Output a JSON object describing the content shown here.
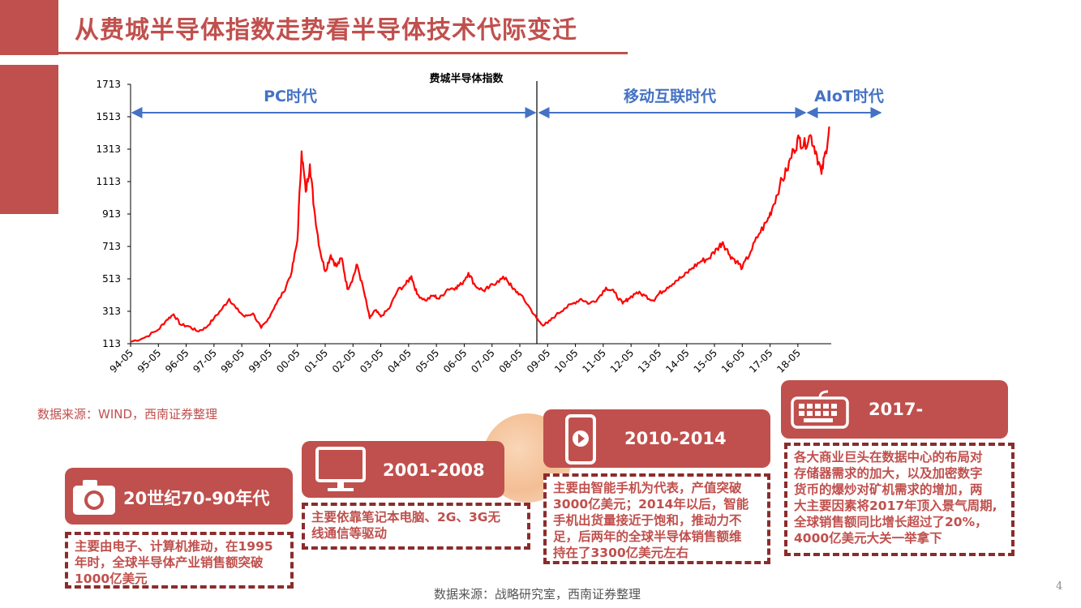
{
  "page": {
    "title": "从费城半导体指数走势看半导体技术代际变迁",
    "source_chart": "数据来源：WIND，西南证券整理",
    "source_footer": "数据来源：战略研究室，西南证券整理",
    "page_number": "4"
  },
  "chart_data": {
    "type": "line",
    "title": "费城半导体指数",
    "xlabel": "",
    "ylabel": "",
    "ylim": [
      113,
      1713
    ],
    "y_ticks": [
      "1713",
      "1513",
      "1313",
      "1113",
      "913",
      "713",
      "513",
      "313",
      "113"
    ],
    "x_ticks": [
      "94-05",
      "95-05",
      "96-05",
      "97-05",
      "98-05",
      "99-05",
      "00-05",
      "01-05",
      "02-05",
      "03-05",
      "04-05",
      "05-05",
      "06-05",
      "07-05",
      "08-05",
      "09-05",
      "10-05",
      "11-05",
      "12-05",
      "13-05",
      "14-05",
      "15-05",
      "16-05",
      "17-05",
      "18-05"
    ],
    "line_color": "#ff0000",
    "grid": false,
    "series": [
      {
        "points": [
          [
            1994.0,
            125
          ],
          [
            1994.5,
            150
          ],
          [
            1995.0,
            200
          ],
          [
            1995.3,
            260
          ],
          [
            1995.55,
            295
          ],
          [
            1995.8,
            230
          ],
          [
            1996.1,
            220
          ],
          [
            1996.4,
            190
          ],
          [
            1996.7,
            210
          ],
          [
            1997.0,
            270
          ],
          [
            1997.3,
            330
          ],
          [
            1997.55,
            390
          ],
          [
            1997.8,
            330
          ],
          [
            1998.1,
            280
          ],
          [
            1998.4,
            300
          ],
          [
            1998.7,
            210
          ],
          [
            1998.9,
            250
          ],
          [
            1999.2,
            350
          ],
          [
            1999.5,
            430
          ],
          [
            1999.8,
            560
          ],
          [
            2000.0,
            750
          ],
          [
            2000.15,
            1300
          ],
          [
            2000.3,
            1050
          ],
          [
            2000.45,
            1220
          ],
          [
            2000.6,
            950
          ],
          [
            2000.8,
            700
          ],
          [
            2001.0,
            560
          ],
          [
            2001.2,
            660
          ],
          [
            2001.4,
            590
          ],
          [
            2001.6,
            640
          ],
          [
            2001.8,
            450
          ],
          [
            2002.0,
            520
          ],
          [
            2002.15,
            600
          ],
          [
            2002.4,
            430
          ],
          [
            2002.6,
            270
          ],
          [
            2002.8,
            320
          ],
          [
            2003.0,
            280
          ],
          [
            2003.3,
            330
          ],
          [
            2003.6,
            440
          ],
          [
            2003.9,
            480
          ],
          [
            2004.1,
            530
          ],
          [
            2004.3,
            420
          ],
          [
            2004.6,
            380
          ],
          [
            2004.9,
            410
          ],
          [
            2005.1,
            390
          ],
          [
            2005.4,
            450
          ],
          [
            2005.7,
            460
          ],
          [
            2005.9,
            480
          ],
          [
            2006.15,
            550
          ],
          [
            2006.4,
            470
          ],
          [
            2006.7,
            440
          ],
          [
            2006.9,
            460
          ],
          [
            2007.2,
            500
          ],
          [
            2007.5,
            520
          ],
          [
            2007.75,
            450
          ],
          [
            2008.0,
            420
          ],
          [
            2008.3,
            350
          ],
          [
            2008.6,
            270
          ],
          [
            2008.8,
            230
          ],
          [
            2009.0,
            240
          ],
          [
            2009.3,
            290
          ],
          [
            2009.6,
            330
          ],
          [
            2009.9,
            360
          ],
          [
            2010.2,
            390
          ],
          [
            2010.5,
            360
          ],
          [
            2010.8,
            390
          ],
          [
            2011.1,
            460
          ],
          [
            2011.4,
            430
          ],
          [
            2011.7,
            360
          ],
          [
            2011.9,
            390
          ],
          [
            2012.2,
            430
          ],
          [
            2012.5,
            410
          ],
          [
            2012.8,
            380
          ],
          [
            2013.0,
            420
          ],
          [
            2013.3,
            460
          ],
          [
            2013.6,
            500
          ],
          [
            2013.9,
            530
          ],
          [
            2014.2,
            580
          ],
          [
            2014.5,
            620
          ],
          [
            2014.8,
            640
          ],
          [
            2015.1,
            700
          ],
          [
            2015.3,
            740
          ],
          [
            2015.55,
            660
          ],
          [
            2015.8,
            620
          ],
          [
            2016.0,
            580
          ],
          [
            2016.3,
            680
          ],
          [
            2016.6,
            790
          ],
          [
            2016.9,
            870
          ],
          [
            2017.1,
            960
          ],
          [
            2017.35,
            1090
          ],
          [
            2017.6,
            1180
          ],
          [
            2017.85,
            1310
          ],
          [
            2018.05,
            1380
          ],
          [
            2018.2,
            1330
          ],
          [
            2018.45,
            1400
          ],
          [
            2018.65,
            1300
          ],
          [
            2018.85,
            1160
          ],
          [
            2019.0,
            1300
          ],
          [
            2019.15,
            1450
          ]
        ]
      }
    ],
    "era_annotations": [
      {
        "label": "PC时代"
      },
      {
        "label": "移动互联时代"
      },
      {
        "label": "AIoT时代"
      }
    ]
  },
  "eras": [
    {
      "period": "20世纪70-90年代",
      "icon": "camera-icon",
      "lines": [
        "主要由电子、计算机推动，在1995",
        "年时，全球半导体产业销售额突破",
        "1000亿美元"
      ]
    },
    {
      "period": "2001-2008",
      "icon": "monitor-icon",
      "lines": [
        "主要依靠笔记本电脑、2G、3G无",
        "线通信等驱动"
      ]
    },
    {
      "period": "2010-2014",
      "icon": "smartphone-icon",
      "lines": [
        "主要由智能手机为代表，产值突破",
        "3000亿美元；2014年以后，智能",
        "手机出货量接近于饱和，推动力不",
        "足，后两年的全球半导体销售额维",
        "持在了3300亿美元左右"
      ]
    },
    {
      "period": "2017-",
      "icon": "keyboard-icon",
      "lines": [
        "各大商业巨头在数据中心的布局对",
        "存储器需求的加大，以及加密数字",
        "货币的爆炒对矿机需求的增加，两",
        "大主要因素将2017年顶入景气周期,",
        "全球销售额同比增长超过了20%，",
        "4000亿美元大关一举拿下"
      ]
    }
  ],
  "colors": {
    "brand": "#c0504d",
    "arrow": "#4472c4",
    "line": "#ff0000"
  }
}
